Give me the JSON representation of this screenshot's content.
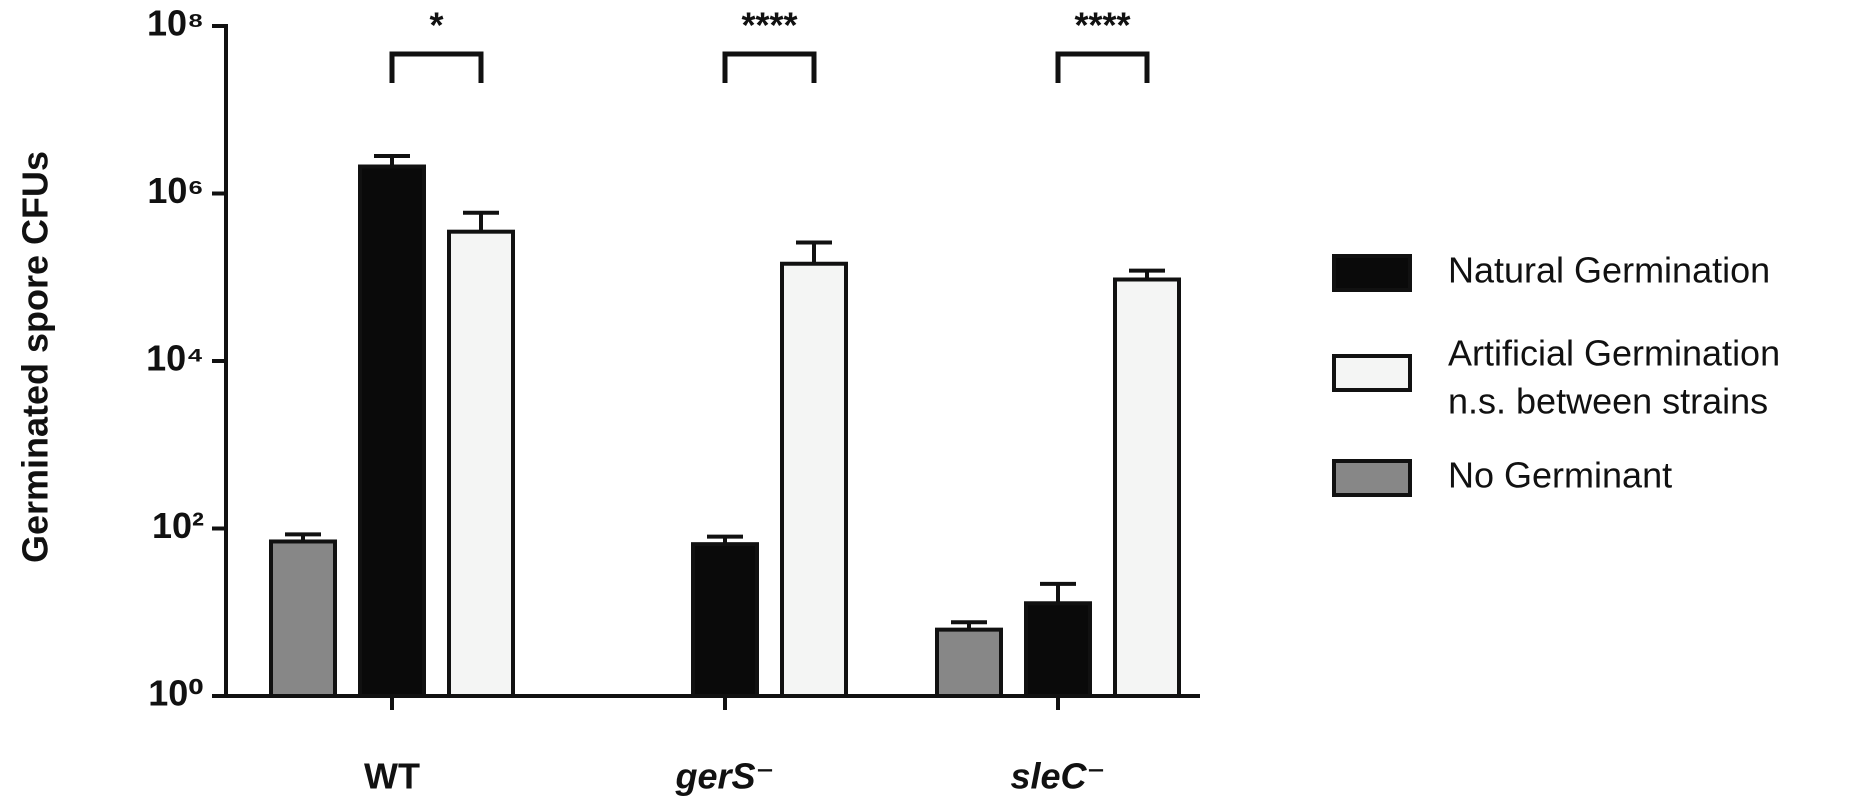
{
  "chart_data": {
    "type": "bar",
    "y_label": "Germinated spore CFUs",
    "categories": [
      "WT",
      "gerS⁻",
      "sleC⁻"
    ],
    "series": [
      {
        "name": "Natural Germination",
        "color": "#0a0a0a",
        "values": [
          2100000,
          65,
          12.8
        ],
        "errors": [
          700000,
          15,
          9
        ]
      },
      {
        "name": "Artificial Germination",
        "color": "#f4f5f4",
        "values": [
          350000,
          145000,
          94000
        ],
        "errors": [
          240000,
          115000,
          26000
        ]
      },
      {
        "name": "No Germinant",
        "color": "#878787",
        "values": [
          70,
          null,
          6.2
        ],
        "errors": [
          15,
          null,
          1.4
        ]
      }
    ],
    "legend_note": "n.s. between strains",
    "significance": [
      "*",
      "****",
      "****"
    ],
    "log_scale": true,
    "ylim": [
      1,
      100000000
    ],
    "yticks": [
      {
        "value": 1,
        "label": "10⁰"
      },
      {
        "value": 100,
        "label": "10²"
      },
      {
        "value": 10000,
        "label": "10⁴"
      },
      {
        "value": 1000000,
        "label": "10⁶"
      },
      {
        "value": 100000000,
        "label": "10⁸"
      }
    ],
    "legend": "right"
  }
}
